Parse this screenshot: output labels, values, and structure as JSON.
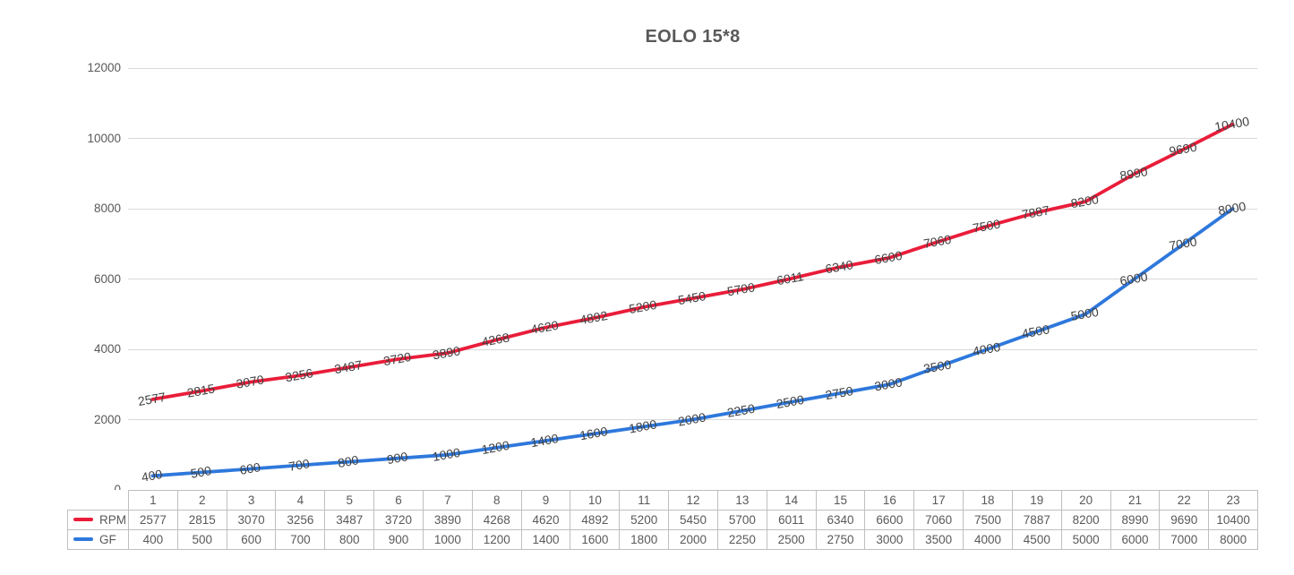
{
  "chart_data": {
    "type": "line",
    "title": "EOLO 15*8",
    "x": [
      1,
      2,
      3,
      4,
      5,
      6,
      7,
      8,
      9,
      10,
      11,
      12,
      13,
      14,
      15,
      16,
      17,
      18,
      19,
      20,
      21,
      22,
      23
    ],
    "series": [
      {
        "name": "RPM",
        "color": "#e91d3a",
        "values": [
          2577,
          2815,
          3070,
          3256,
          3487,
          3720,
          3890,
          4268,
          4620,
          4892,
          5200,
          5450,
          5700,
          6011,
          6340,
          6600,
          7060,
          7500,
          7887,
          8200,
          8990,
          9690,
          10400
        ]
      },
      {
        "name": "GF",
        "color": "#2e78dc",
        "values": [
          400,
          500,
          600,
          700,
          800,
          900,
          1000,
          1200,
          1400,
          1600,
          1800,
          2000,
          2250,
          2500,
          2750,
          3000,
          3500,
          4000,
          4500,
          5000,
          6000,
          7000,
          8000
        ]
      }
    ],
    "ylim": [
      0,
      12000
    ],
    "yticks": [
      0,
      2000,
      4000,
      6000,
      8000,
      10000,
      12000
    ],
    "grid": "horizontal-only",
    "data_labels": "on-point-rotated",
    "legend_position": "data-table-left-column"
  },
  "colors": {
    "grid": "#d9d9d9",
    "table_border": "#bfbfbf",
    "axis_text": "#595959",
    "data_label_text": "#404040",
    "title_text": "#595959"
  }
}
